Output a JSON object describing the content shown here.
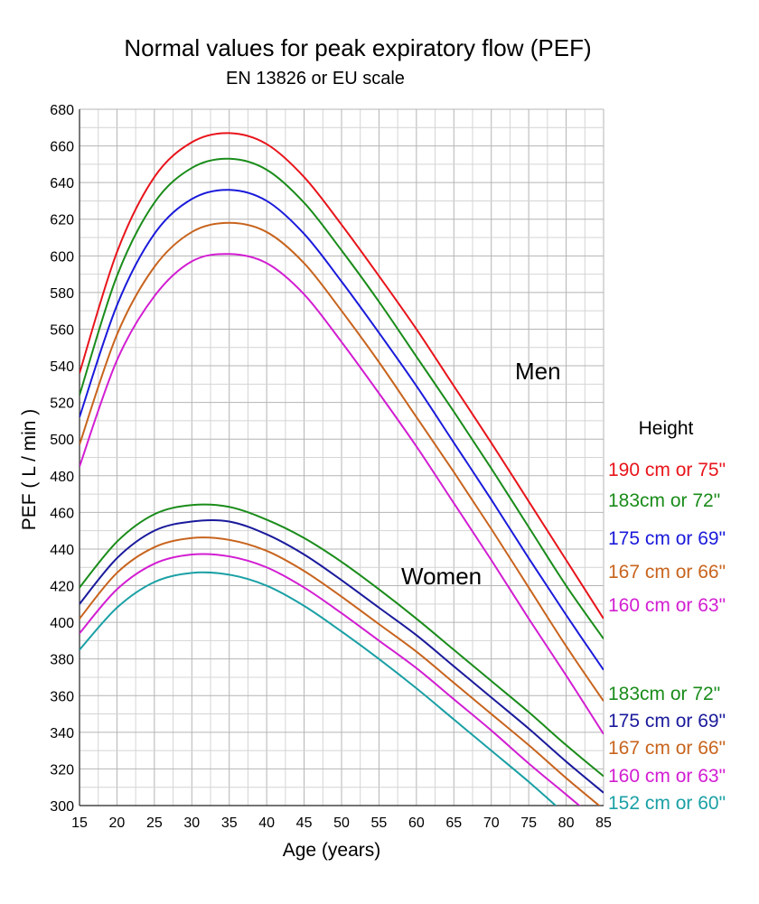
{
  "chart_data": {
    "type": "line",
    "title": "Normal values for peak expiratory flow (PEF)",
    "subtitle": "EN 13826 or EU scale",
    "xlabel": "Age (years)",
    "ylabel": "PEF ( L / min )",
    "xlim": [
      15,
      85
    ],
    "ylim": [
      300,
      680
    ],
    "xticks": [
      15,
      20,
      25,
      30,
      35,
      40,
      45,
      50,
      55,
      60,
      65,
      70,
      75,
      80,
      85
    ],
    "yticks": [
      300,
      320,
      340,
      360,
      380,
      400,
      420,
      440,
      460,
      480,
      500,
      520,
      540,
      560,
      580,
      600,
      620,
      640,
      660,
      680
    ],
    "grid": true,
    "x": [
      15,
      20,
      25,
      30,
      35,
      40,
      45,
      50,
      55,
      60,
      65,
      70,
      75,
      80,
      85
    ],
    "groups": [
      {
        "label": "Men",
        "series": [
          {
            "name": "190 cm or 75\"",
            "color": "#e8141b",
            "values": [
              536,
              602,
              643,
              662,
              667,
              661,
              643,
              617,
              589,
              560,
              529,
              498,
              466,
              434,
              402
            ]
          },
          {
            "name": "183cm or 72\"",
            "color": "#1a8c1a",
            "values": [
              524,
              589,
              629,
              648,
              653,
              647,
              629,
              603,
              575,
              545,
              515,
              484,
              452,
              420,
              391
            ]
          },
          {
            "name": "175 cm or 69\"",
            "color": "#1a1adb",
            "values": [
              512,
              573,
              612,
              631,
              636,
              630,
              612,
              586,
              558,
              529,
              498,
              467,
              435,
              404,
              374
            ]
          },
          {
            "name": "167 cm or 66\"",
            "color": "#c8641e",
            "values": [
              497,
              557,
              594,
              613,
              618,
              613,
              596,
              570,
              542,
              512,
              482,
              451,
              419,
              387,
              357
            ]
          },
          {
            "name": "160 cm or 63\"",
            "color": "#d21ed2",
            "values": [
              485,
              543,
              578,
              597,
              601,
              596,
              579,
              553,
              525,
              496,
              465,
              434,
              402,
              371,
              339
            ]
          }
        ]
      },
      {
        "label": "Women",
        "series": [
          {
            "name": "183cm or 72\"",
            "color": "#1a8c1a",
            "values": [
              419,
              444,
              459,
              464,
              463,
              456,
              446,
              433,
              418,
              402,
              385,
              368,
              351,
              333,
              316
            ]
          },
          {
            "name": "175 cm or 69\"",
            "color": "#1a1a9c",
            "values": [
              410,
              435,
              450,
              455,
              455,
              448,
              437,
              423,
              408,
              393,
              376,
              359,
              342,
              324,
              307
            ]
          },
          {
            "name": "167 cm or 66\"",
            "color": "#c8641e",
            "values": [
              402,
              427,
              441,
              446,
              445,
              439,
              428,
              414,
              399,
              384,
              367,
              350,
              333,
              315,
              298
            ]
          },
          {
            "name": "160 cm or 63\"",
            "color": "#d21ed2",
            "values": [
              394,
              418,
              432,
              437,
              436,
              430,
              419,
              405,
              390,
              375,
              358,
              341,
              323,
              306,
              289
            ]
          },
          {
            "name": "152 cm or 60\"",
            "color": "#1aa0a5",
            "values": [
              385,
              408,
              422,
              427,
              426,
              420,
              409,
              395,
              380,
              364,
              347,
              330,
              313,
              295,
              278
            ]
          }
        ]
      }
    ],
    "legend_title": "Height"
  }
}
